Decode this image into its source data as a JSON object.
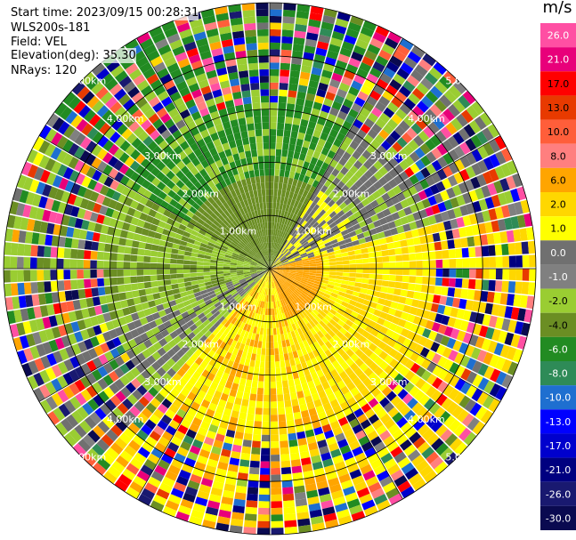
{
  "header": {
    "start_time": "Start time: 2023/09/15 00:28:31",
    "instrument": "WLS200s-181",
    "field": "Field: VEL",
    "elevation": "Elevation(deg): 35.30",
    "nrays": "NRays: 120"
  },
  "chart_data": {
    "type": "heatmap",
    "projection": "polar-ppi",
    "field": "VEL",
    "units": "m/s",
    "range_ring_labels": [
      "1.00km",
      "2.00km",
      "3.00km",
      "4.00km",
      "5.00km"
    ],
    "range_rings_km": [
      1,
      2,
      3,
      4,
      5
    ],
    "max_range_km": 5,
    "nrays": 120,
    "colorbar": {
      "title": "m/s",
      "tick_labels": [
        "26.0",
        "21.0",
        "17.0",
        "13.0",
        "10.0",
        "8.0",
        "6.0",
        "2.0",
        "1.0",
        "0.0",
        "-1.0",
        "-2.0",
        "-4.0",
        "-6.0",
        "-8.0",
        "-10.0",
        "-13.0",
        "-17.0",
        "-21.0",
        "-26.0",
        "-30.0"
      ],
      "colors": [
        "#ff4fa3",
        "#e8007a",
        "#ff0000",
        "#e83a00",
        "#ff5e3a",
        "#ff7f7f",
        "#ffa500",
        "#ffd700",
        "#ffff00",
        "#707070",
        "#808080",
        "#9acd32",
        "#6b8e23",
        "#228b22",
        "#2e8b57",
        "#1e6fd0",
        "#0000ff",
        "#0000cd",
        "#000080",
        "#191970",
        "#0a0a50"
      ]
    }
  }
}
